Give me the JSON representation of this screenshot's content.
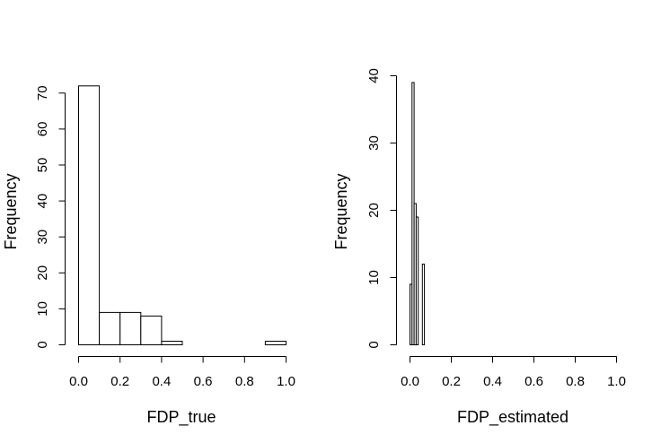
{
  "chart_data": [
    {
      "type": "bar",
      "title": "",
      "xlabel": "FDP_true",
      "ylabel": "Frequency",
      "xlim": [
        0,
        1
      ],
      "ylim": [
        0,
        72
      ],
      "x_ticks": [
        "0.0",
        "0.2",
        "0.4",
        "0.6",
        "0.8",
        "1.0"
      ],
      "y_ticks": [
        "0",
        "10",
        "20",
        "30",
        "40",
        "50",
        "60",
        "70"
      ],
      "bins": [
        {
          "start": 0.0,
          "end": 0.1,
          "count": 72
        },
        {
          "start": 0.1,
          "end": 0.2,
          "count": 9
        },
        {
          "start": 0.2,
          "end": 0.3,
          "count": 9
        },
        {
          "start": 0.3,
          "end": 0.4,
          "count": 8
        },
        {
          "start": 0.4,
          "end": 0.5,
          "count": 1
        },
        {
          "start": 0.5,
          "end": 0.6,
          "count": 0
        },
        {
          "start": 0.6,
          "end": 0.7,
          "count": 0
        },
        {
          "start": 0.7,
          "end": 0.8,
          "count": 0
        },
        {
          "start": 0.8,
          "end": 0.9,
          "count": 0
        },
        {
          "start": 0.9,
          "end": 1.0,
          "count": 1
        }
      ]
    },
    {
      "type": "bar",
      "title": "",
      "xlabel": "FDP_estimated",
      "ylabel": "Frequency",
      "xlim": [
        0,
        1
      ],
      "ylim": [
        0,
        40
      ],
      "x_ticks": [
        "0.0",
        "0.2",
        "0.4",
        "0.6",
        "0.8",
        "1.0"
      ],
      "y_ticks": [
        "0",
        "10",
        "20",
        "30",
        "40"
      ],
      "bins": [
        {
          "start": 0.0,
          "end": 0.01,
          "count": 9
        },
        {
          "start": 0.01,
          "end": 0.02,
          "count": 39
        },
        {
          "start": 0.02,
          "end": 0.03,
          "count": 21
        },
        {
          "start": 0.03,
          "end": 0.04,
          "count": 19
        },
        {
          "start": 0.04,
          "end": 0.05,
          "count": 0
        },
        {
          "start": 0.05,
          "end": 0.06,
          "count": 0
        },
        {
          "start": 0.06,
          "end": 0.07,
          "count": 12
        }
      ]
    }
  ]
}
